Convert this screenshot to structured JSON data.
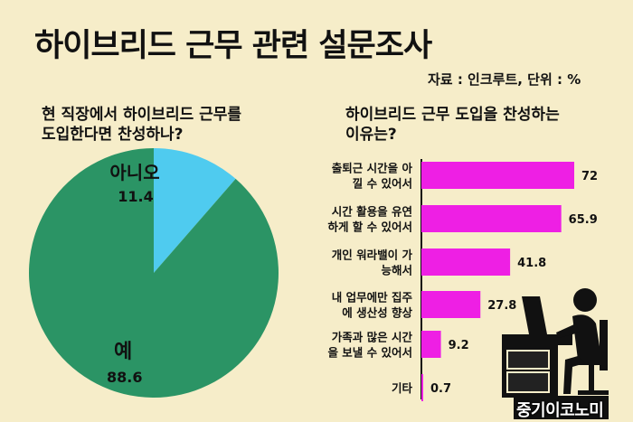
{
  "title": "하이브리드 근무 관련 설문조사",
  "source": "자료 : 인크루트, 단위 : %",
  "pie": {
    "question_line1": "현 직장에서 하이브리드 근무를",
    "question_line2": "도입한다면 찬성하나?"
  },
  "bar": {
    "question_line1": "하이브리드 근무 도입을 찬성하는",
    "question_line2": "이유는?"
  },
  "brand": "중기이코노미",
  "colors": {
    "background": "#f6edc9",
    "pie_yes": "#2b9465",
    "pie_no": "#4fcbef",
    "bar": "#ee1fe4"
  },
  "chart_data": [
    {
      "type": "pie",
      "slices": [
        {
          "label": "예",
          "value": 88.6,
          "value_label": "88.6",
          "color": "#2b9465"
        },
        {
          "label": "아니오",
          "value": 11.4,
          "value_label": "11.4",
          "color": "#4fcbef"
        }
      ]
    },
    {
      "type": "bar",
      "orientation": "horizontal",
      "categories": [
        [
          "출퇴근 시간을 아",
          "낄 수 있어서"
        ],
        [
          "시간 활용을 유연",
          "하게 할 수 있어서"
        ],
        [
          "개인 워라밸이 가",
          "능해서"
        ],
        [
          "내 업무에만 집주",
          "에 생산성 향상"
        ],
        [
          "가족과 많은 시간",
          "을 보낼 수 있어서"
        ],
        [
          "기타"
        ]
      ],
      "values": [
        72,
        65.9,
        41.8,
        27.8,
        9.2,
        0.7
      ],
      "value_labels": [
        "72",
        "65.9",
        "41.8",
        "27.8",
        "9.2",
        "0.7"
      ],
      "xlim": [
        0,
        80
      ]
    }
  ]
}
